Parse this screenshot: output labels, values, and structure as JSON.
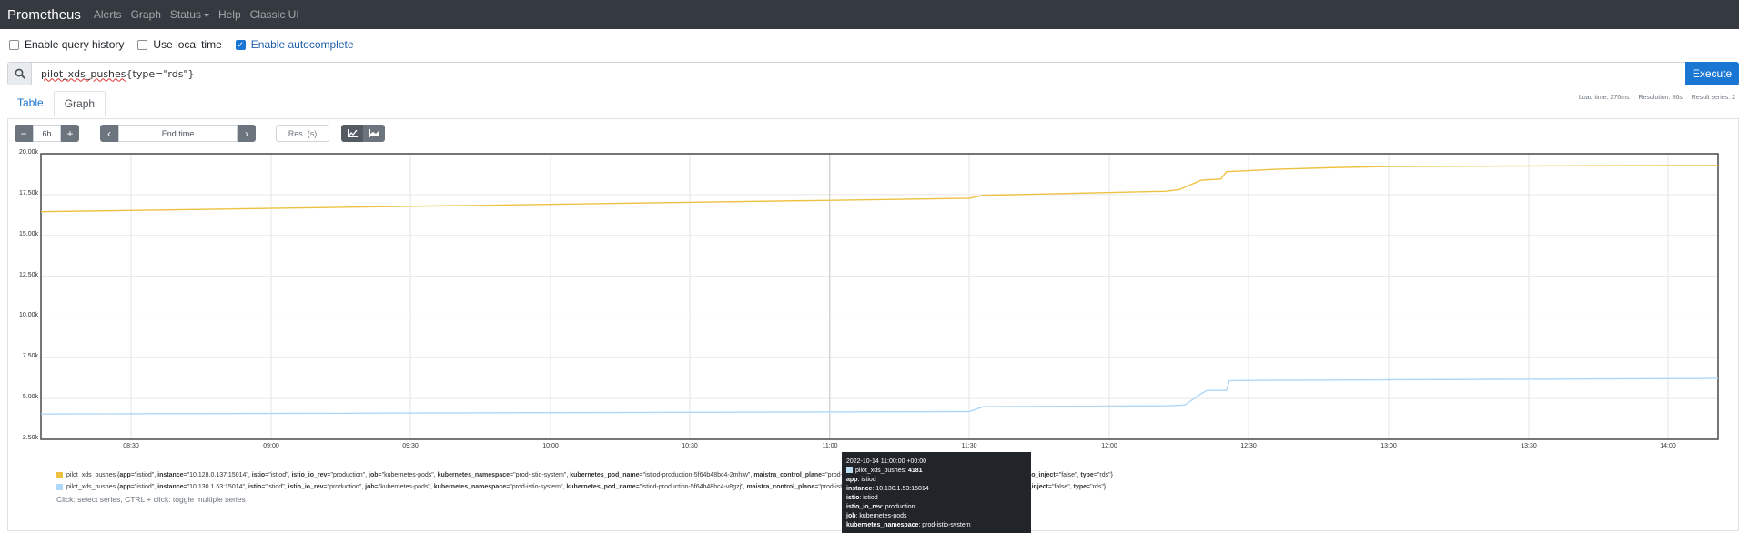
{
  "navbar": {
    "brand": "Prometheus",
    "links": [
      "Alerts",
      "Graph",
      "Status",
      "Help",
      "Classic UI"
    ]
  },
  "options": {
    "query_history": {
      "label": "Enable query history",
      "checked": false
    },
    "local_time": {
      "label": "Use local time",
      "checked": false
    },
    "autocomplete": {
      "label": "Enable autocomplete",
      "checked": true
    }
  },
  "query": {
    "metric": "pilot_xds_pushes",
    "selector": "{type=\"rds\"}",
    "execute_label": "Execute"
  },
  "tabs": [
    "Table",
    "Graph"
  ],
  "stats": {
    "load_time": "Load time: 276ms",
    "resolution": "Resolution: 86s",
    "result_series": "Result series: 2"
  },
  "controls": {
    "minus": "−",
    "range": "6h",
    "plus": "+",
    "prev": "‹",
    "end_time_placeholder": "End time",
    "next": "›",
    "resolution_placeholder": "Res. (s)"
  },
  "chart_data": {
    "type": "line",
    "y_ticks": [
      "20.00k",
      "17.50k",
      "15.00k",
      "12.50k",
      "10.00k",
      "7.50k",
      "5.00k",
      "2.50k"
    ],
    "x_ticks": [
      "08:30",
      "09:00",
      "09:30",
      "10:00",
      "10:30",
      "11:00",
      "11:30",
      "12:00",
      "12:30",
      "13:00",
      "13:30",
      "14:00"
    ],
    "ylim": [
      2500,
      20000
    ],
    "xlim_minutes": [
      8.2,
      14.2
    ],
    "series": [
      {
        "color": "#edc240",
        "points": [
          [
            8.0,
            16450
          ],
          [
            11.5,
            17270
          ],
          [
            11.55,
            17450
          ],
          [
            12.2,
            17700
          ],
          [
            12.25,
            17800
          ],
          [
            12.33,
            18380
          ],
          [
            12.4,
            18450
          ],
          [
            12.42,
            18900
          ],
          [
            12.6,
            19050
          ],
          [
            12.8,
            19150
          ],
          [
            13.0,
            19220
          ],
          [
            13.5,
            19250
          ],
          [
            14.2,
            19280
          ]
        ]
      },
      {
        "color": "#afd8f8",
        "points": [
          [
            8.0,
            4050
          ],
          [
            11.5,
            4200
          ],
          [
            11.55,
            4500
          ],
          [
            12.2,
            4550
          ],
          [
            12.27,
            4600
          ],
          [
            12.33,
            5300
          ],
          [
            12.35,
            5500
          ],
          [
            12.42,
            5500
          ],
          [
            12.43,
            6100
          ],
          [
            12.6,
            6120
          ],
          [
            13.0,
            6150
          ],
          [
            14.2,
            6230
          ]
        ]
      }
    ]
  },
  "legend": [
    {
      "color": "#edc240",
      "metric": "pilot_xds_pushes",
      "labels": [
        [
          "app",
          "\"istiod\""
        ],
        [
          "instance",
          "\"10.128.0.137:15014\""
        ],
        [
          "istio",
          "\"istiod\""
        ],
        [
          "istio_io_rev",
          "\"production\""
        ],
        [
          "job",
          "\"kubernetes-pods\""
        ],
        [
          "kubernetes_namespace",
          "\"prod-istio-system\""
        ],
        [
          "kubernetes_pod_name",
          "\"istiod-production-5f64b48bc4-2mhlw\""
        ],
        [
          "maistra_control_plane",
          "\"prod-istio-system\""
        ],
        [
          "pod_template_hash",
          "\"5f64b48bc4\""
        ],
        [
          "sidecar_istio_io_inject",
          "\"false\""
        ],
        [
          "type",
          "\"rds\""
        ]
      ]
    },
    {
      "color": "#afd8f8",
      "metric": "pilot_xds_pushes",
      "labels": [
        [
          "app",
          "\"istiod\""
        ],
        [
          "instance",
          "\"10.130.1.53:15014\""
        ],
        [
          "istio",
          "\"istiod\""
        ],
        [
          "istio_io_rev",
          "\"production\""
        ],
        [
          "job",
          "\"kubernetes-pods\""
        ],
        [
          "kubernetes_namespace",
          "\"prod-istio-system\""
        ],
        [
          "kubernetes_pod_name",
          "\"istiod-production-5f64b48bc4-v8gzj\""
        ],
        [
          "maistra_control_plane",
          "\"prod-istio-system\""
        ],
        [
          "pod_template_hash",
          "\"5f64b48bc4\""
        ],
        [
          "sidecar_istio_io_inject",
          "\"false\""
        ],
        [
          "type",
          "\"rds\""
        ]
      ]
    }
  ],
  "legend_hint": "Click: select series, CTRL + click: toggle multiple series",
  "tooltip": {
    "timestamp": "2022-10-14 11:00:00 +00:00",
    "metric": "pilot_xds_pushes:",
    "value": "4181",
    "rows": [
      [
        "app",
        "istiod"
      ],
      [
        "instance",
        "10.130.1.53:15014"
      ],
      [
        "istio",
        "istiod"
      ],
      [
        "istio_io_rev",
        "production"
      ],
      [
        "job",
        "kubernetes-pods"
      ],
      [
        "kubernetes_namespace",
        "prod-istio-system"
      ]
    ]
  }
}
